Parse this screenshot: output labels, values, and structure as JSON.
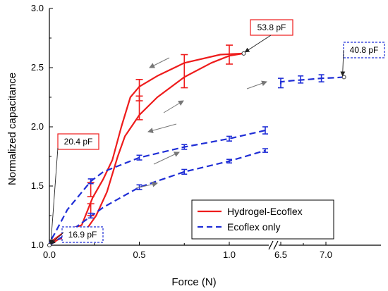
{
  "chart_data": {
    "type": "line",
    "title": "",
    "xlabel": "Force (N)",
    "ylabel": "Normalized capacitance",
    "ylim": [
      1.0,
      3.0
    ],
    "x_axis_broken": true,
    "x_segments": [
      {
        "range": [
          0.0,
          1.25
        ],
        "ticks": [
          0.0,
          0.5,
          1.0
        ],
        "tick_labels": [
          "0.0",
          "0.5",
          "1.0"
        ]
      },
      {
        "range": [
          6.5,
          7.3
        ],
        "ticks": [
          6.5,
          7.0
        ],
        "tick_labels": [
          "6.5",
          "7.0"
        ]
      }
    ],
    "y_ticks": [
      1.0,
      1.5,
      2.0,
      2.5,
      3.0
    ],
    "y_tick_labels": [
      "1.0",
      "1.5",
      "2.0",
      "2.5",
      "3.0"
    ],
    "grid": false,
    "legend": "bottom-right",
    "series": [
      {
        "name": "Hydrogel-Ecoflex",
        "color": "#ee1c1c",
        "style": "solid",
        "loading": [
          [
            0.0,
            1.0
          ],
          [
            0.05,
            1.05
          ],
          [
            0.12,
            1.08
          ],
          [
            0.2,
            1.12
          ],
          [
            0.26,
            1.25
          ],
          [
            0.32,
            1.45
          ],
          [
            0.38,
            1.75
          ],
          [
            0.42,
            1.92
          ],
          [
            0.5,
            2.1
          ],
          [
            0.6,
            2.25
          ],
          [
            0.75,
            2.42
          ],
          [
            0.9,
            2.54
          ],
          [
            1.0,
            2.6
          ],
          [
            1.08,
            2.62
          ]
        ],
        "unloading": [
          [
            1.08,
            2.62
          ],
          [
            0.95,
            2.61
          ],
          [
            0.75,
            2.54
          ],
          [
            0.6,
            2.43
          ],
          [
            0.5,
            2.34
          ],
          [
            0.45,
            2.25
          ],
          [
            0.4,
            2.0
          ],
          [
            0.35,
            1.72
          ],
          [
            0.3,
            1.56
          ],
          [
            0.24,
            1.4
          ],
          [
            0.18,
            1.17
          ],
          [
            0.1,
            1.13
          ],
          [
            0.0,
            1.02
          ]
        ],
        "error_bars": [
          {
            "x": 0.23,
            "y": 1.3,
            "err": 0.05
          },
          {
            "x": 0.23,
            "y": 1.47,
            "err": 0.06
          },
          {
            "x": 0.5,
            "y": 2.16,
            "err": 0.1
          },
          {
            "x": 0.5,
            "y": 2.31,
            "err": 0.09
          },
          {
            "x": 0.75,
            "y": 2.47,
            "err": 0.14
          },
          {
            "x": 1.0,
            "y": 2.61,
            "err": 0.08
          }
        ]
      },
      {
        "name": "Ecoflex only",
        "color": "#1f2ed6",
        "style": "dashed",
        "segment_1_loading": [
          [
            0.0,
            1.0
          ],
          [
            0.1,
            1.1
          ],
          [
            0.2,
            1.21
          ],
          [
            0.3,
            1.32
          ],
          [
            0.5,
            1.49
          ],
          [
            0.75,
            1.62
          ],
          [
            1.0,
            1.71
          ],
          [
            1.2,
            1.8
          ]
        ],
        "segment_1_unloading": [
          [
            1.2,
            1.97
          ],
          [
            1.0,
            1.9
          ],
          [
            0.75,
            1.83
          ],
          [
            0.5,
            1.74
          ],
          [
            0.3,
            1.62
          ],
          [
            0.23,
            1.54
          ],
          [
            0.1,
            1.3
          ],
          [
            0.03,
            1.1
          ],
          [
            0.0,
            1.02
          ]
        ],
        "segment_2": [
          [
            6.5,
            2.36
          ],
          [
            6.5,
            2.38
          ],
          [
            6.62,
            2.39
          ],
          [
            6.8,
            2.4
          ],
          [
            6.95,
            2.41
          ],
          [
            7.1,
            2.415
          ],
          [
            7.2,
            2.42
          ]
        ],
        "error_bars": [
          {
            "x": 0.23,
            "y": 1.25,
            "err": 0.02
          },
          {
            "x": 0.23,
            "y": 1.54,
            "err": 0.02
          },
          {
            "x": 0.5,
            "y": 1.49,
            "err": 0.02
          },
          {
            "x": 0.5,
            "y": 1.74,
            "err": 0.02
          },
          {
            "x": 0.75,
            "y": 1.62,
            "err": 0.02
          },
          {
            "x": 0.75,
            "y": 1.83,
            "err": 0.02
          },
          {
            "x": 1.0,
            "y": 1.71,
            "err": 0.015
          },
          {
            "x": 1.0,
            "y": 1.9,
            "err": 0.02
          },
          {
            "x": 1.2,
            "y": 1.8,
            "err": 0.015
          },
          {
            "x": 1.2,
            "y": 1.97,
            "err": 0.03
          },
          {
            "x": 6.5,
            "y": 2.37,
            "err": 0.04
          },
          {
            "x": 6.72,
            "y": 2.4,
            "err": 0.03
          },
          {
            "x": 6.95,
            "y": 2.41,
            "err": 0.03
          }
        ]
      }
    ],
    "annotations": [
      {
        "text": "53.8 pF",
        "color": "#ee1c1c",
        "box": "solid",
        "points_to": {
          "x": 1.08,
          "y": 2.62
        }
      },
      {
        "text": "40.8 pF",
        "color": "#1f2ed6",
        "box": "dotted",
        "points_to": {
          "x": 7.2,
          "y": 2.42
        }
      },
      {
        "text": "20.4 pF",
        "color": "#ee1c1c",
        "box": "solid",
        "points_to": {
          "x": 0.0,
          "y": 1.0
        }
      },
      {
        "text": "16.9 pF",
        "color": "#1f2ed6",
        "box": "dotted",
        "points_to": {
          "x": 0.0,
          "y": 1.0
        }
      }
    ]
  }
}
